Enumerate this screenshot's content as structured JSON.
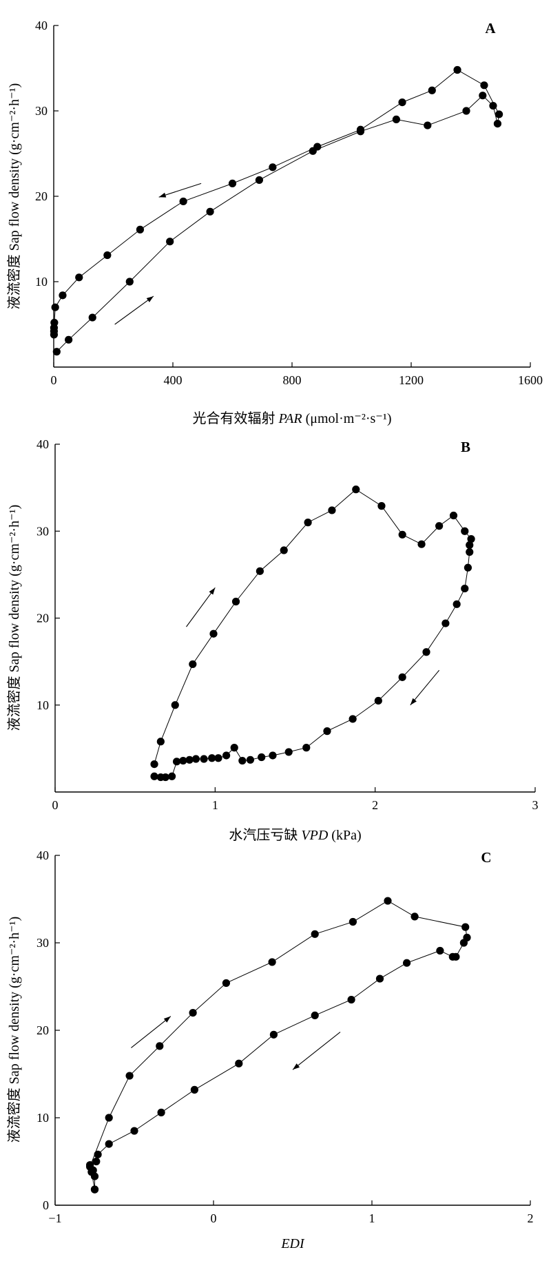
{
  "chart_data": [
    {
      "type": "line",
      "panel_label": "A",
      "xlabel": "光合有效辐射 PAR (μmol·m⁻²·s⁻¹)",
      "xlabel_main": "光合有效辐射 ",
      "xlabel_var": "PAR",
      "xlabel_unit": " (μmol·m⁻²·s⁻¹)",
      "ylabel": "液流密度 Sap flow density (g·cm⁻²·h⁻¹)",
      "xlim": [
        0,
        1600
      ],
      "ylim": [
        0,
        40
      ],
      "xticks": [
        0,
        400,
        800,
        1200,
        1600
      ],
      "yticks": [
        10,
        20,
        30,
        40
      ],
      "show_origin_y_label": false,
      "grid": false,
      "series": [
        {
          "values": [
            [
              10,
              1.8
            ],
            [
              50,
              3.2
            ],
            [
              130,
              5.8
            ],
            [
              255,
              10.0
            ],
            [
              390,
              14.7
            ],
            [
              525,
              18.2
            ],
            [
              690,
              21.9
            ],
            [
              870,
              25.3
            ],
            [
              1030,
              27.6
            ],
            [
              1150,
              29.0
            ],
            [
              1255,
              28.3
            ],
            [
              1385,
              30.0
            ],
            [
              1440,
              31.8
            ],
            [
              1475,
              30.6
            ],
            [
              1490,
              28.5
            ],
            [
              1495,
              29.6
            ],
            [
              1445,
              33.0
            ],
            [
              1355,
              34.8
            ],
            [
              1270,
              32.4
            ],
            [
              1170,
              31.0
            ],
            [
              1030,
              27.8
            ],
            [
              885,
              25.8
            ],
            [
              735,
              23.4
            ],
            [
              600,
              21.5
            ],
            [
              435,
              19.4
            ],
            [
              290,
              16.1
            ],
            [
              180,
              13.1
            ],
            [
              85,
              10.5
            ],
            [
              30,
              8.4
            ],
            [
              5,
              7.0
            ],
            [
              2,
              5.2
            ],
            [
              1,
              4.6
            ],
            [
              1,
              4.2
            ],
            [
              1,
              3.8
            ]
          ]
        }
      ],
      "arrows": [
        {
          "from": [
            495,
            21.5
          ],
          "to": [
            353,
            19.9
          ]
        },
        {
          "from": [
            205,
            5.0
          ],
          "to": [
            335,
            8.3
          ]
        }
      ]
    },
    {
      "type": "line",
      "panel_label": "B",
      "xlabel": "水汽压亏缺 VPD (kPa)",
      "xlabel_main": "水汽压亏缺 ",
      "xlabel_var": "VPD",
      "xlabel_unit": " (kPa)",
      "ylabel": "液流密度 Sap flow density (g·cm⁻²·h⁻¹)",
      "xlim": [
        0,
        3
      ],
      "ylim": [
        0,
        40
      ],
      "xticks": [
        0,
        1,
        2,
        3
      ],
      "yticks": [
        10,
        20,
        30,
        40
      ],
      "show_origin_y_label": false,
      "grid": false,
      "series": [
        {
          "values": [
            [
              0.62,
              1.8
            ],
            [
              0.66,
              1.7
            ],
            [
              0.69,
              1.7
            ],
            [
              0.73,
              1.8
            ],
            [
              0.76,
              3.5
            ],
            [
              0.8,
              3.6
            ],
            [
              0.84,
              3.7
            ],
            [
              0.88,
              3.8
            ],
            [
              0.93,
              3.8
            ],
            [
              0.98,
              3.9
            ],
            [
              1.02,
              3.9
            ],
            [
              1.07,
              4.2
            ],
            [
              1.12,
              5.1
            ],
            [
              1.17,
              3.6
            ],
            [
              1.22,
              3.7
            ],
            [
              1.29,
              4.0
            ],
            [
              1.36,
              4.2
            ],
            [
              1.46,
              4.6
            ],
            [
              1.57,
              5.1
            ],
            [
              1.7,
              7.0
            ],
            [
              1.86,
              8.4
            ],
            [
              2.02,
              10.5
            ],
            [
              2.17,
              13.2
            ],
            [
              2.32,
              16.1
            ],
            [
              2.44,
              19.4
            ],
            [
              2.51,
              21.6
            ],
            [
              2.56,
              23.4
            ],
            [
              2.58,
              25.8
            ],
            [
              2.59,
              27.6
            ],
            [
              2.59,
              28.4
            ],
            [
              2.6,
              29.1
            ],
            [
              2.56,
              30.0
            ],
            [
              2.49,
              31.8
            ],
            [
              2.4,
              30.6
            ],
            [
              2.29,
              28.5
            ],
            [
              2.17,
              29.6
            ],
            [
              2.04,
              32.9
            ],
            [
              1.88,
              34.8
            ],
            [
              1.73,
              32.4
            ],
            [
              1.58,
              31.0
            ],
            [
              1.43,
              27.8
            ],
            [
              1.28,
              25.4
            ],
            [
              1.13,
              21.9
            ],
            [
              0.99,
              18.2
            ],
            [
              0.86,
              14.7
            ],
            [
              0.75,
              10.0
            ],
            [
              0.66,
              5.8
            ],
            [
              0.62,
              3.2
            ]
          ]
        }
      ],
      "arrows": [
        {
          "from": [
            0.82,
            19.0
          ],
          "to": [
            1.0,
            23.5
          ]
        },
        {
          "from": [
            2.4,
            14.0
          ],
          "to": [
            2.22,
            10.0
          ]
        }
      ]
    },
    {
      "type": "line",
      "panel_label": "C",
      "xlabel": "EDI",
      "xlabel_main": "",
      "xlabel_var": "EDI",
      "xlabel_unit": "",
      "ylabel": "液流密度 Sap flow density (g·cm⁻²·h⁻¹)",
      "xlim": [
        -1,
        2
      ],
      "ylim": [
        0,
        40
      ],
      "xticks": [
        -1,
        0,
        1,
        2
      ],
      "yticks": [
        0,
        10,
        20,
        30,
        40
      ],
      "show_origin_y_label": true,
      "grid": false,
      "series": [
        {
          "values": [
            [
              -0.75,
              1.8
            ],
            [
              -0.75,
              3.3
            ],
            [
              -0.76,
              4.0
            ],
            [
              -0.78,
              4.6
            ],
            [
              -0.74,
              5.0
            ],
            [
              -0.73,
              5.8
            ],
            [
              -0.66,
              7.0
            ],
            [
              -0.5,
              8.5
            ],
            [
              -0.33,
              10.6
            ],
            [
              -0.12,
              13.2
            ],
            [
              0.16,
              16.2
            ],
            [
              0.38,
              19.5
            ],
            [
              0.64,
              21.7
            ],
            [
              0.87,
              23.5
            ],
            [
              1.05,
              25.9
            ],
            [
              1.22,
              27.7
            ],
            [
              1.43,
              29.1
            ],
            [
              1.51,
              28.4
            ],
            [
              1.53,
              28.4
            ],
            [
              1.58,
              30.0
            ],
            [
              1.6,
              30.6
            ],
            [
              1.59,
              31.8
            ],
            [
              1.27,
              33.0
            ],
            [
              1.1,
              34.8
            ],
            [
              0.88,
              32.4
            ],
            [
              0.64,
              31.0
            ],
            [
              0.37,
              27.8
            ],
            [
              0.08,
              25.4
            ],
            [
              -0.13,
              22.0
            ],
            [
              -0.34,
              18.2
            ],
            [
              -0.53,
              14.8
            ],
            [
              -0.66,
              10.0
            ],
            [
              -0.78,
              4.4
            ],
            [
              -0.77,
              3.8
            ],
            [
              -0.75,
              1.8
            ]
          ]
        }
      ],
      "arrows": [
        {
          "from": [
            -0.52,
            18.0
          ],
          "to": [
            -0.27,
            21.6
          ]
        },
        {
          "from": [
            0.8,
            19.8
          ],
          "to": [
            0.5,
            15.5
          ]
        }
      ]
    }
  ]
}
